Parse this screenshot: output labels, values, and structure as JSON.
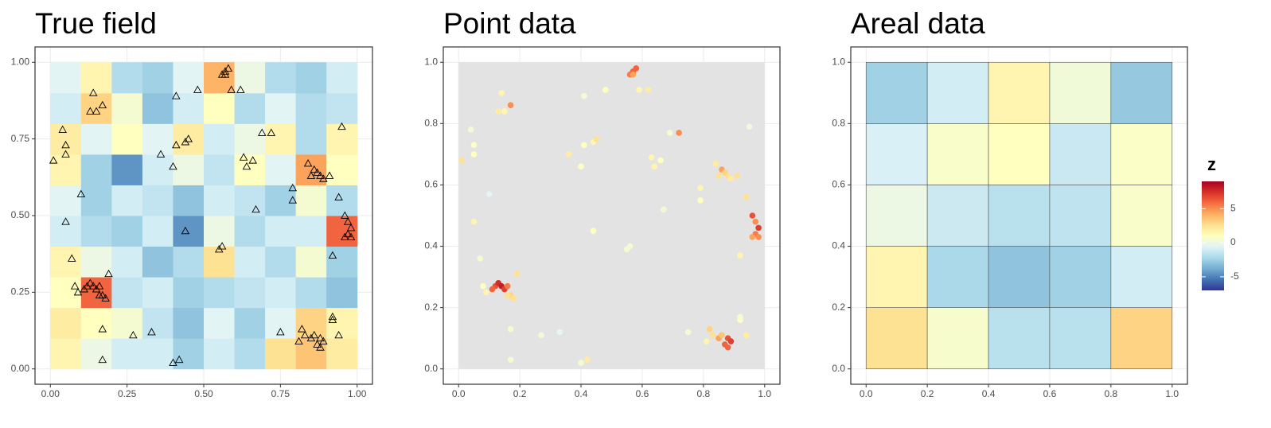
{
  "chart_data": [
    {
      "type": "heatmap",
      "title": "True field",
      "xlim": [
        -0.05,
        1.05
      ],
      "ylim": [
        -0.05,
        1.05
      ],
      "xticks": [
        {
          "value": 0,
          "label": "0.00"
        },
        {
          "value": 0.25,
          "label": "0.25"
        },
        {
          "value": 0.5,
          "label": "0.50"
        },
        {
          "value": 0.75,
          "label": "0.75"
        },
        {
          "value": 1,
          "label": "1.00"
        }
      ],
      "yticks": [
        {
          "value": 0,
          "label": "0.00"
        },
        {
          "value": 0.25,
          "label": "0.25"
        },
        {
          "value": 0.5,
          "label": "0.50"
        },
        {
          "value": 0.75,
          "label": "0.75"
        },
        {
          "value": 1,
          "label": "1.00"
        }
      ],
      "grid": true,
      "x": [
        0.05,
        0.15,
        0.25,
        0.35,
        0.45,
        0.55,
        0.65,
        0.75,
        0.85,
        0.95
      ],
      "y": [
        0.05,
        0.15,
        0.25,
        0.35,
        0.45,
        0.55,
        0.65,
        0.75,
        0.85,
        0.95
      ],
      "z": [
        [
          1.5,
          0,
          -1,
          -1,
          -2.5,
          -1,
          -2,
          2.5,
          3.5,
          2
        ],
        [
          2,
          1,
          0.5,
          -1.5,
          -3,
          -0.5,
          -2.5,
          -0.5,
          3,
          1.5
        ],
        [
          1,
          6,
          -1.5,
          -1,
          -2.5,
          -2,
          -1.5,
          -1,
          -2,
          -3
        ],
        [
          1.5,
          0,
          -1,
          -3,
          -2,
          2.5,
          -1,
          -2,
          0.5,
          -2.5
        ],
        [
          -1,
          -2,
          -2.5,
          -1,
          -4.5,
          0,
          -2,
          -1,
          -1,
          6
        ],
        [
          -0.5,
          -2.5,
          -1,
          -1.5,
          -3,
          -1,
          -1.5,
          -2.5,
          0.5,
          -2
        ],
        [
          1.5,
          -2.5,
          -4.5,
          -1,
          0,
          -1.5,
          1,
          -0.5,
          4.5,
          1
        ],
        [
          2,
          -0.5,
          1,
          -0.5,
          2,
          -1,
          0,
          1.5,
          -2,
          1.5
        ],
        [
          -1,
          3,
          0.5,
          -3,
          -1,
          1,
          -2,
          -0.5,
          -2,
          -1.5
        ],
        [
          -0.5,
          1.5,
          -2,
          -2.5,
          -0.5,
          4,
          0,
          -2,
          -2.5,
          -1
        ]
      ]
    },
    {
      "type": "scatter",
      "title": "Point data",
      "xlim": [
        -0.05,
        1.05
      ],
      "ylim": [
        -0.05,
        1.05
      ],
      "xticks": [
        {
          "value": 0,
          "label": "0.0"
        },
        {
          "value": 0.2,
          "label": "0.2"
        },
        {
          "value": 0.4,
          "label": "0.4"
        },
        {
          "value": 0.6,
          "label": "0.6"
        },
        {
          "value": 0.8,
          "label": "0.8"
        },
        {
          "value": 1,
          "label": "1.0"
        }
      ],
      "yticks": [
        {
          "value": 0,
          "label": "0.0"
        },
        {
          "value": 0.2,
          "label": "0.2"
        },
        {
          "value": 0.4,
          "label": "0.4"
        },
        {
          "value": 0.6,
          "label": "0.6"
        },
        {
          "value": 0.8,
          "label": "0.8"
        },
        {
          "value": 1,
          "label": "1.0"
        }
      ],
      "grid": true,
      "x": [
        0.01,
        0.04,
        0.05,
        0.05,
        0.05,
        0.07,
        0.08,
        0.09,
        0.1,
        0.12,
        0.13,
        0.14,
        0.15,
        0.11,
        0.16,
        0.17,
        0.16,
        0.18,
        0.19,
        0.14,
        0.13,
        0.15,
        0.17,
        0.17,
        0.17,
        0.27,
        0.33,
        0.36,
        0.4,
        0.41,
        0.44,
        0.45,
        0.41,
        0.48,
        0.42,
        0.4,
        0.44,
        0.55,
        0.56,
        0.56,
        0.57,
        0.58,
        0.57,
        0.59,
        0.62,
        0.63,
        0.64,
        0.66,
        0.67,
        0.69,
        0.72,
        0.75,
        0.79,
        0.79,
        0.84,
        0.86,
        0.85,
        0.88,
        0.89,
        0.87,
        0.91,
        0.94,
        0.96,
        0.97,
        0.98,
        0.97,
        0.98,
        0.96,
        0.92,
        0.95,
        0.82,
        0.83,
        0.81,
        0.85,
        0.86,
        0.87,
        0.88,
        0.89,
        0.88,
        0.92,
        0.92,
        0.94
      ],
      "y": [
        0.68,
        0.78,
        0.73,
        0.7,
        0.48,
        0.36,
        0.27,
        0.25,
        0.57,
        0.27,
        0.28,
        0.27,
        0.26,
        0.26,
        0.27,
        0.24,
        0.24,
        0.23,
        0.31,
        0.9,
        0.84,
        0.84,
        0.86,
        0.13,
        0.03,
        0.11,
        0.12,
        0.7,
        0.66,
        0.73,
        0.74,
        0.75,
        0.89,
        0.91,
        0.03,
        0.02,
        0.45,
        0.39,
        0.4,
        0.96,
        0.97,
        0.98,
        0.96,
        0.91,
        0.91,
        0.69,
        0.66,
        0.68,
        0.52,
        0.77,
        0.77,
        0.12,
        0.59,
        0.55,
        0.67,
        0.65,
        0.63,
        0.63,
        0.62,
        0.64,
        0.63,
        0.56,
        0.5,
        0.48,
        0.46,
        0.44,
        0.43,
        0.43,
        0.37,
        0.79,
        0.13,
        0.11,
        0.09,
        0.1,
        0.11,
        0.08,
        0.1,
        0.09,
        0.07,
        0.16,
        0.17,
        0.11
      ],
      "z": [
        2.5,
        0.5,
        0.8,
        1,
        1.5,
        0.5,
        1,
        1.5,
        -0.5,
        6.5,
        7.5,
        8,
        7,
        6,
        5.5,
        3,
        2.5,
        2.5,
        2.5,
        1.5,
        2,
        1.5,
        5,
        0.5,
        0.5,
        0.3,
        -0.3,
        2,
        0.8,
        1,
        1.5,
        2.5,
        0.5,
        1,
        2,
        0.5,
        1,
        0.5,
        0.3,
        5.5,
        6,
        6,
        4.5,
        1.5,
        2,
        1.5,
        1.5,
        1,
        0.3,
        0.5,
        5,
        0.5,
        1.5,
        1,
        2,
        4.5,
        2.5,
        2.5,
        2,
        3,
        2.5,
        2.5,
        6.5,
        5,
        7,
        5.5,
        5,
        4.5,
        1.5,
        0.2,
        3,
        2.5,
        1.5,
        4.5,
        3.5,
        6,
        6.5,
        7,
        6,
        1,
        0.5,
        2
      ]
    },
    {
      "type": "heatmap",
      "title": "Areal data",
      "xlim": [
        -0.05,
        1.05
      ],
      "ylim": [
        -0.05,
        1.05
      ],
      "xticks": [
        {
          "value": 0,
          "label": "0.0"
        },
        {
          "value": 0.2,
          "label": "0.2"
        },
        {
          "value": 0.4,
          "label": "0.4"
        },
        {
          "value": 0.6,
          "label": "0.6"
        },
        {
          "value": 0.8,
          "label": "0.8"
        },
        {
          "value": 1,
          "label": "1.0"
        }
      ],
      "yticks": [
        {
          "value": 0,
          "label": "0.0"
        },
        {
          "value": 0.2,
          "label": "0.2"
        },
        {
          "value": 0.4,
          "label": "0.4"
        },
        {
          "value": 0.6,
          "label": "0.6"
        },
        {
          "value": 0.8,
          "label": "0.8"
        },
        {
          "value": 1,
          "label": "1.0"
        }
      ],
      "grid": true,
      "x": [
        0.1,
        0.3,
        0.5,
        0.7,
        0.9
      ],
      "y": [
        0.1,
        0.3,
        0.5,
        0.7,
        0.9
      ],
      "z": [
        [
          2.5,
          0.6,
          -1.8,
          -1.8,
          3
        ],
        [
          1.5,
          -2.2,
          -3,
          -2.5,
          -1
        ],
        [
          0,
          -1.2,
          -1.8,
          -1.6,
          0.7
        ],
        [
          -0.8,
          0.7,
          1,
          -1.3,
          0.8
        ],
        [
          -2.5,
          -1,
          1.5,
          0.3,
          -2.8
        ]
      ],
      "legend": {
        "title": "z",
        "lim": [
          -7,
          9
        ],
        "ticks": [
          -5,
          0,
          5
        ],
        "palette": [
          "#313695",
          "#4575b4",
          "#74add1",
          "#abd9e9",
          "#e0f3f8",
          "#ffffbf",
          "#fee090",
          "#fdae61",
          "#f46d43",
          "#d73027",
          "#a50026"
        ]
      }
    }
  ]
}
